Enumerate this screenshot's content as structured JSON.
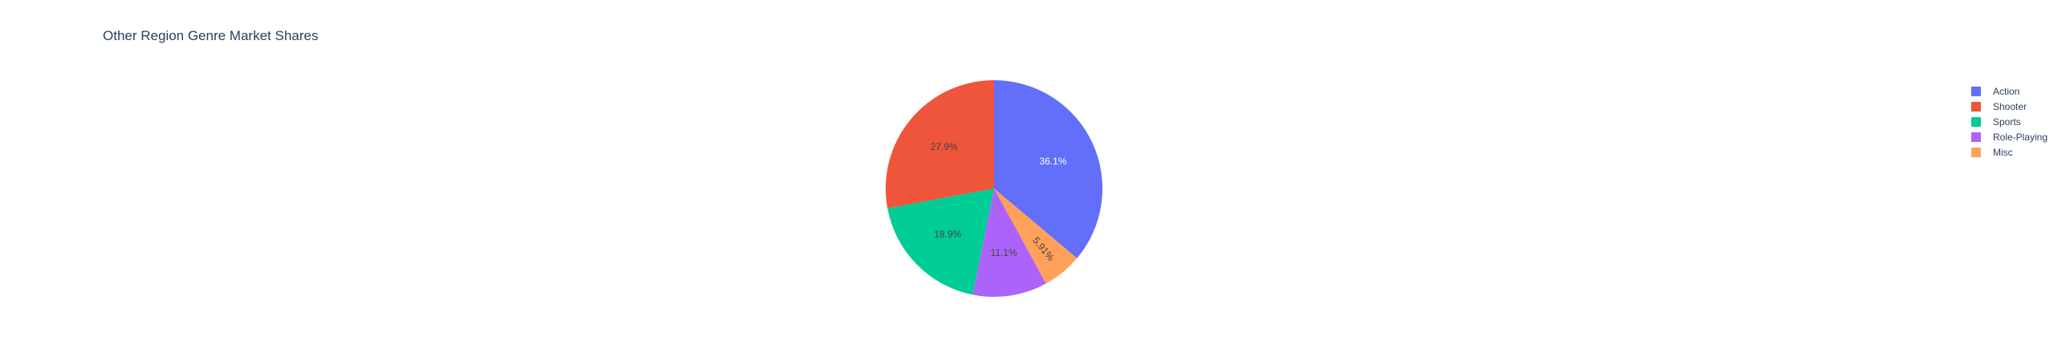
{
  "chart_data": {
    "type": "pie",
    "title": "Other Region Genre Market Shares",
    "direction": "clockwise",
    "start_angle_deg": 0,
    "legend_placement": "top-right",
    "slices": [
      {
        "label": "Action",
        "percent": 36.1,
        "percent_label": "36.1%",
        "color": "#636efa",
        "label_color": "#ffffff"
      },
      {
        "label": "Misc",
        "percent": 5.91,
        "percent_label": "5.91%",
        "color": "#ffa15a",
        "label_color": "#444444"
      },
      {
        "label": "Role-Playing",
        "percent": 11.1,
        "percent_label": "11.1%",
        "color": "#ab63fa",
        "label_color": "#444444"
      },
      {
        "label": "Sports",
        "percent": 18.9,
        "percent_label": "18.9%",
        "color": "#00cc96",
        "label_color": "#444444"
      },
      {
        "label": "Shooter",
        "percent": 27.9,
        "percent_label": "27.9%",
        "color": "#ef553b",
        "label_color": "#444444"
      }
    ],
    "legend": [
      {
        "label": "Action",
        "color": "#636efa"
      },
      {
        "label": "Shooter",
        "color": "#ef553b"
      },
      {
        "label": "Sports",
        "color": "#00cc96"
      },
      {
        "label": "Role-Playing",
        "color": "#ab63fa"
      },
      {
        "label": "Misc",
        "color": "#ffa15a"
      }
    ]
  }
}
